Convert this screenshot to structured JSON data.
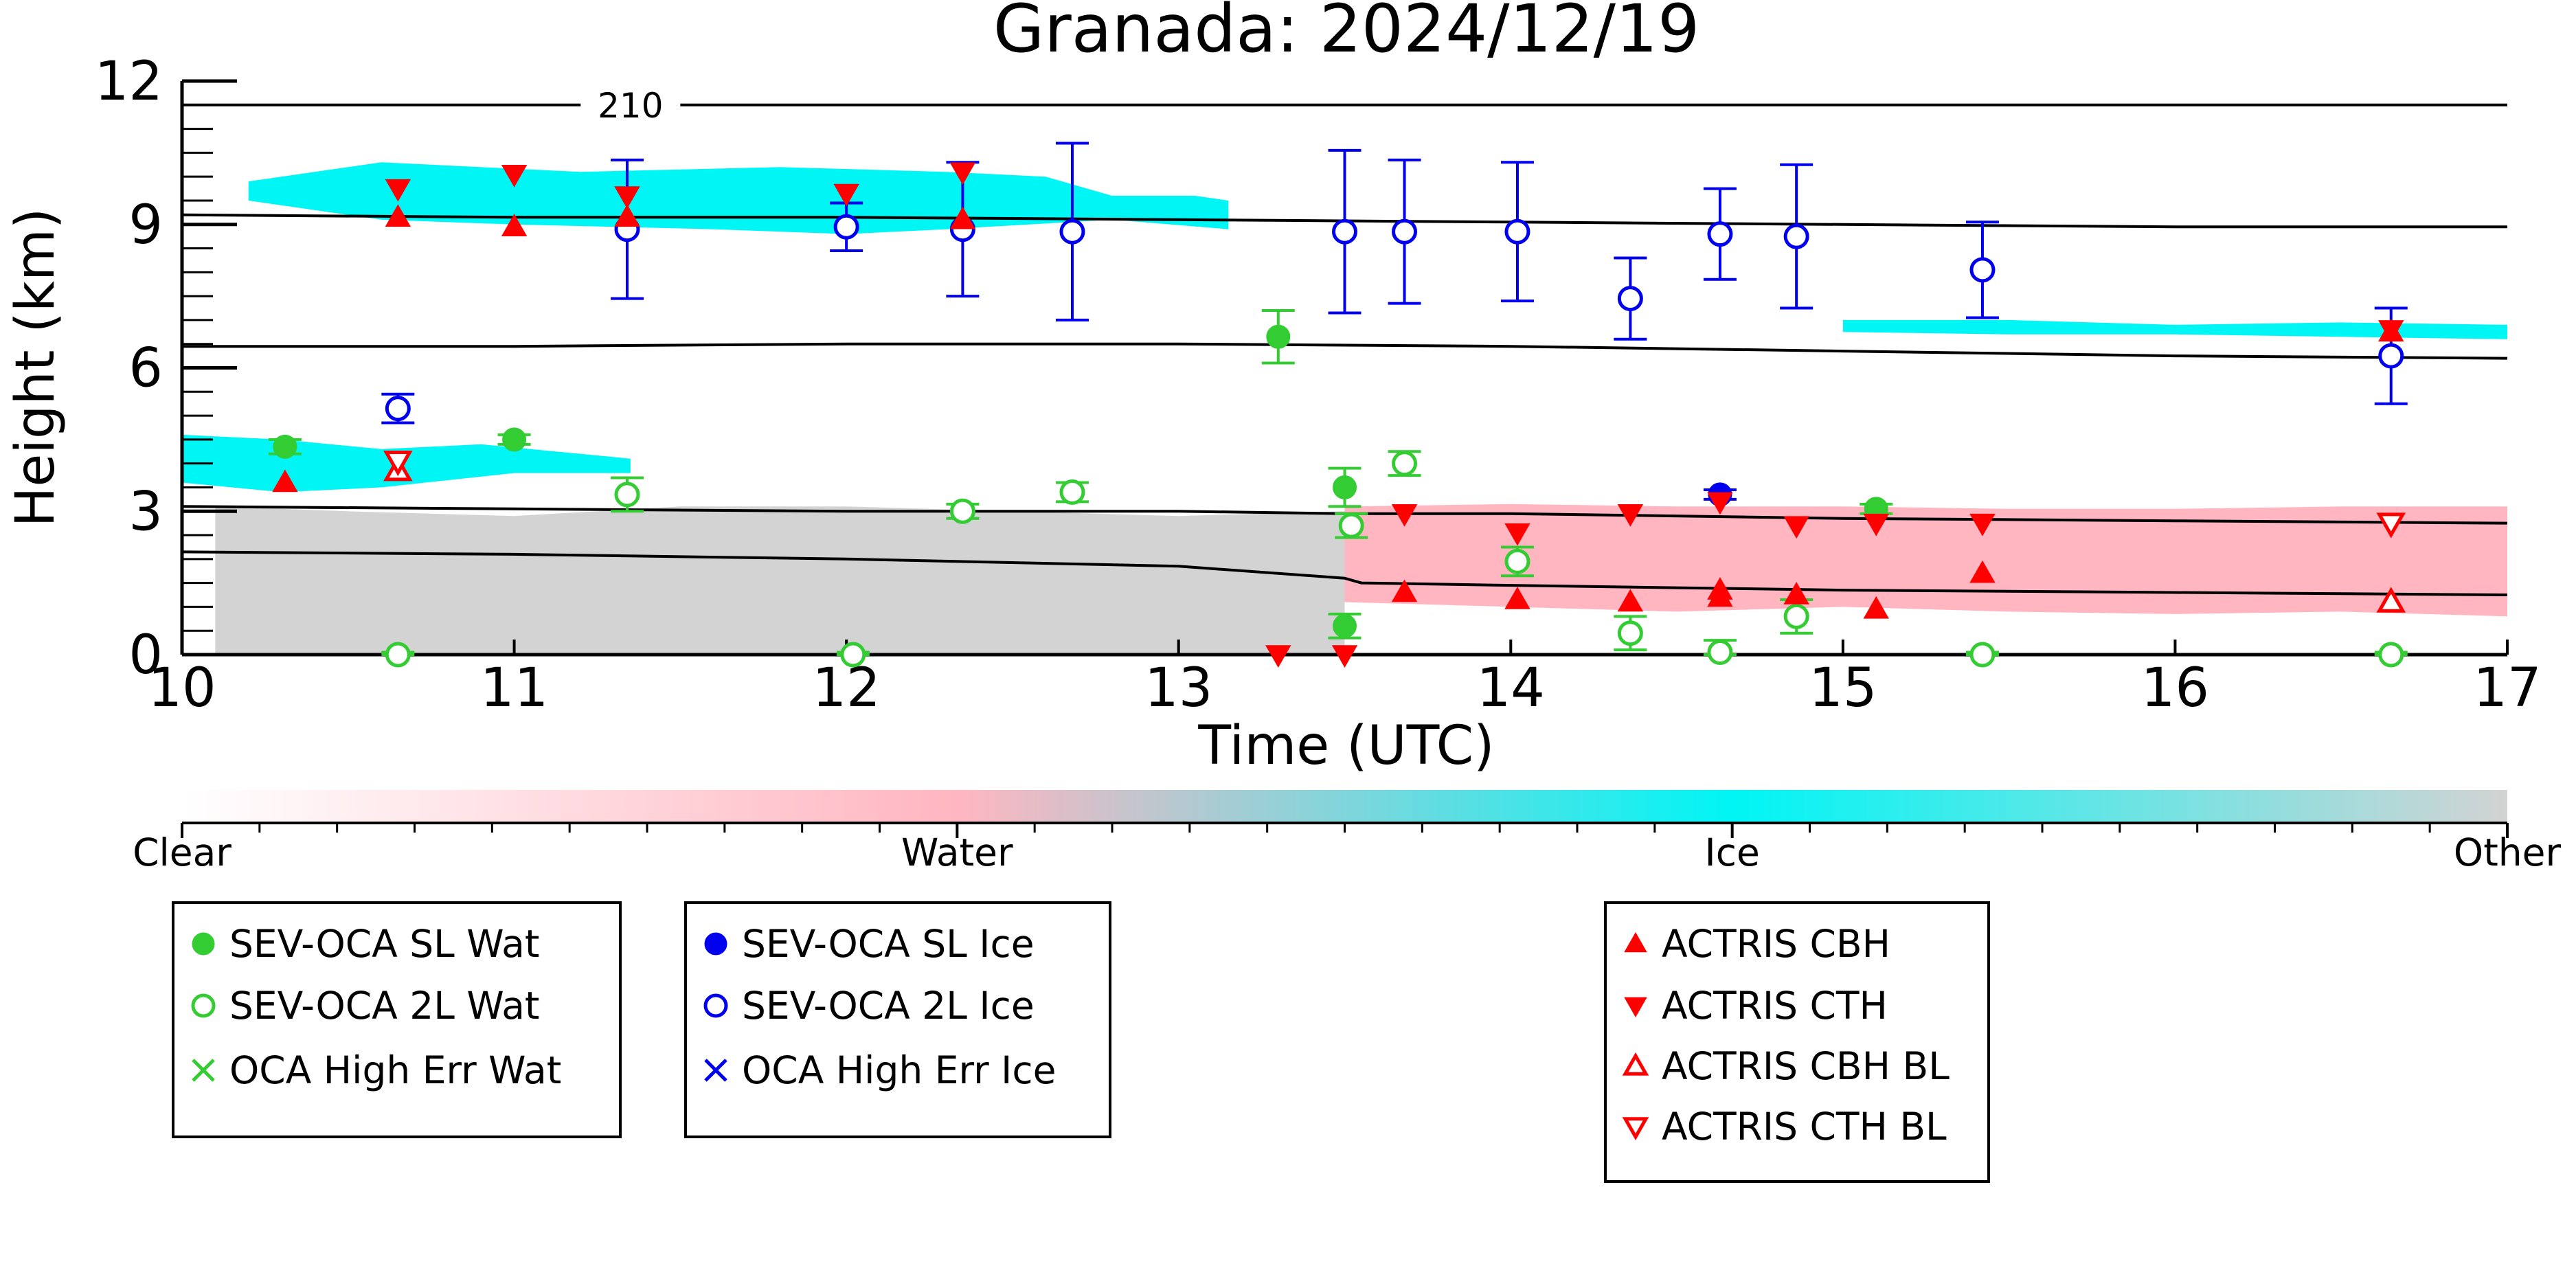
{
  "chart_data": {
    "type": "scatter",
    "title": "Granada: 2024/12/19",
    "xlabel": "Time (UTC)",
    "ylabel": "Height (km)",
    "xlim": [
      10,
      17
    ],
    "ylim": [
      0,
      12
    ],
    "xticks": [
      "10",
      "11",
      "12",
      "13",
      "14",
      "15",
      "16",
      "17"
    ],
    "yticks": [
      "0",
      "3",
      "6",
      "9",
      "12"
    ],
    "contour_label": "210",
    "colorbar": {
      "labels": [
        "Clear",
        "Water",
        "Ice",
        "Other"
      ],
      "colors": [
        "#ffffff",
        "#ffb6c1",
        "#00f5f5",
        "#d3d3d3"
      ]
    },
    "contour_lines": [
      {
        "x": [
          10,
          13,
          14,
          15,
          16,
          17
        ],
        "y": [
          11.5,
          11.5,
          11.5,
          11.5,
          11.5,
          11.5
        ]
      },
      {
        "x": [
          10,
          11,
          12,
          13,
          14,
          15,
          16,
          17
        ],
        "y": [
          9.2,
          9.15,
          9.15,
          9.1,
          9.05,
          9.0,
          8.95,
          8.95
        ]
      },
      {
        "x": [
          10,
          11,
          12,
          13,
          14,
          15,
          16,
          17
        ],
        "y": [
          6.45,
          6.45,
          6.5,
          6.5,
          6.45,
          6.35,
          6.25,
          6.2
        ]
      },
      {
        "x": [
          10,
          11,
          12,
          13,
          13.5,
          14,
          15,
          16,
          17
        ],
        "y": [
          3.1,
          3.05,
          3.0,
          3.0,
          2.95,
          2.95,
          2.85,
          2.8,
          2.75
        ]
      },
      {
        "x": [
          10,
          11,
          12,
          13,
          13.5,
          13.55,
          14,
          15,
          16,
          17
        ],
        "y": [
          2.15,
          2.1,
          2.0,
          1.85,
          1.6,
          1.5,
          1.45,
          1.35,
          1.3,
          1.25
        ]
      }
    ],
    "cloud_layers": [
      {
        "class": "Ice",
        "color": "#00f5f5",
        "x": [
          10.2,
          10.6,
          11.2,
          11.8,
          12.3,
          12.6,
          12.8,
          13.05,
          13.15,
          13.15,
          12.8,
          12.3,
          12.0,
          11.6,
          11.0,
          10.6,
          10.2
        ],
        "y": [
          9.9,
          10.3,
          10.1,
          10.2,
          10.1,
          10.0,
          9.6,
          9.6,
          9.5,
          8.9,
          9.1,
          8.9,
          8.8,
          8.9,
          9.0,
          9.1,
          9.5
        ]
      },
      {
        "class": "Ice",
        "color": "#00f5f5",
        "x": [
          10.0,
          10.3,
          10.6,
          10.9,
          11.35,
          11.35,
          11.0,
          10.6,
          10.3,
          10.0
        ],
        "y": [
          4.6,
          4.5,
          4.3,
          4.4,
          4.1,
          3.8,
          3.8,
          3.5,
          3.4,
          3.6
        ]
      },
      {
        "class": "Ice",
        "color": "#00f5f5",
        "x": [
          15.0,
          15.5,
          16.0,
          16.5,
          17.0,
          17.0,
          16.5,
          16.0,
          15.5,
          15.0
        ],
        "y": [
          7.0,
          7.0,
          6.9,
          6.95,
          6.9,
          6.6,
          6.65,
          6.7,
          6.7,
          6.75
        ]
      },
      {
        "class": "Water",
        "color": "#ffb6c1",
        "x": [
          13.5,
          14.0,
          14.5,
          15.0,
          15.5,
          16.0,
          16.5,
          17.0,
          17.0,
          16.5,
          16.0,
          15.5,
          15.0,
          14.5,
          14.0,
          13.5
        ],
        "y": [
          3.1,
          3.15,
          3.1,
          3.1,
          3.05,
          3.05,
          3.1,
          3.1,
          0.8,
          0.9,
          0.85,
          0.9,
          1.0,
          0.9,
          1.0,
          1.1
        ]
      },
      {
        "class": "Other",
        "color": "#d3d3d3",
        "x": [
          10.1,
          10.5,
          11.0,
          11.5,
          12.0,
          12.5,
          13.0,
          13.5,
          13.5,
          13.0,
          12.0,
          11.0,
          10.1
        ],
        "y": [
          3.1,
          3.0,
          2.9,
          3.1,
          3.1,
          3.0,
          2.9,
          3.0,
          0,
          0,
          0,
          0,
          0
        ]
      }
    ],
    "series": [
      {
        "name": "SEV-OCA SL Wat",
        "marker": "filled-circle",
        "color": "#33cc33",
        "x": [
          10.31,
          11.0,
          13.3,
          13.5,
          13.5,
          15.1
        ],
        "y": [
          4.35,
          4.5,
          6.65,
          3.5,
          0.6,
          3.05
        ],
        "err": [
          0.15,
          0.1,
          0.55,
          0.4,
          0.25,
          0.1
        ]
      },
      {
        "name": "SEV-OCA 2L Wat",
        "marker": "open-circle",
        "color": "#33cc33",
        "x": [
          10.65,
          11.34,
          12.02,
          12.35,
          12.68,
          13.52,
          13.68,
          14.02,
          14.36,
          14.63,
          14.86,
          15.42,
          16.65
        ],
        "y": [
          0.0,
          3.35,
          0.0,
          3.0,
          3.4,
          2.7,
          4.0,
          1.95,
          0.45,
          0.05,
          0.8,
          0.0,
          0.0
        ],
        "err": [
          0.05,
          0.35,
          0.05,
          0.15,
          0.2,
          0.25,
          0.25,
          0.3,
          0.35,
          0.25,
          0.35,
          0.05,
          0.05
        ]
      },
      {
        "name": "OCA High Err Wat",
        "marker": "x",
        "color": "#33cc33",
        "x": [],
        "y": [],
        "err": []
      },
      {
        "name": "SEV-OCA SL Ice",
        "marker": "filled-circle",
        "color": "#0000ee",
        "x": [
          14.63
        ],
        "y": [
          3.35
        ],
        "err": [
          0.1
        ]
      },
      {
        "name": "SEV-OCA 2L Ice",
        "marker": "open-circle",
        "color": "#0000ee",
        "x": [
          10.65,
          11.34,
          12.0,
          12.35,
          12.68,
          13.5,
          13.68,
          14.02,
          14.36,
          14.63,
          14.86,
          15.42,
          16.65
        ],
        "y": [
          5.15,
          8.9,
          8.95,
          8.9,
          8.85,
          8.85,
          8.85,
          8.85,
          7.45,
          8.8,
          8.75,
          8.05,
          6.25
        ],
        "err": [
          0.3,
          1.45,
          0.5,
          1.4,
          1.85,
          1.7,
          1.5,
          1.45,
          0.85,
          0.95,
          1.5,
          1.0,
          1.0
        ]
      },
      {
        "name": "OCA High Err Ice",
        "marker": "x",
        "color": "#0000ee",
        "x": [],
        "y": [],
        "err": []
      },
      {
        "name": "ACTRIS CBH",
        "marker": "triangle-up-filled",
        "color": "#ff0000",
        "x": [
          10.31,
          10.65,
          11.0,
          11.34,
          12.35,
          13.68,
          14.02,
          14.36,
          14.63,
          14.63,
          14.86,
          15.1,
          15.42,
          16.65
        ],
        "y": [
          3.6,
          9.15,
          8.95,
          9.15,
          9.1,
          1.3,
          1.15,
          1.1,
          1.35,
          1.2,
          1.25,
          0.95,
          1.7,
          6.75
        ]
      },
      {
        "name": "ACTRIS CTH",
        "marker": "triangle-down-filled",
        "color": "#ff0000",
        "x": [
          10.65,
          11.0,
          11.34,
          12.0,
          12.35,
          13.3,
          13.5,
          13.68,
          14.02,
          14.36,
          14.63,
          14.86,
          15.1,
          15.42,
          16.65
        ],
        "y": [
          9.75,
          10.05,
          9.6,
          9.65,
          10.1,
          0.0,
          0.0,
          2.95,
          2.55,
          2.95,
          3.2,
          2.7,
          2.75,
          2.75,
          6.8
        ]
      },
      {
        "name": "ACTRIS CBH BL",
        "marker": "triangle-up-open",
        "color": "#ff0000",
        "x": [
          10.65,
          16.65
        ],
        "y": [
          3.85,
          1.1
        ]
      },
      {
        "name": "ACTRIS CTH BL",
        "marker": "triangle-down-open",
        "color": "#ff0000",
        "x": [
          10.65,
          16.65
        ],
        "y": [
          4.05,
          2.75
        ]
      }
    ]
  }
}
